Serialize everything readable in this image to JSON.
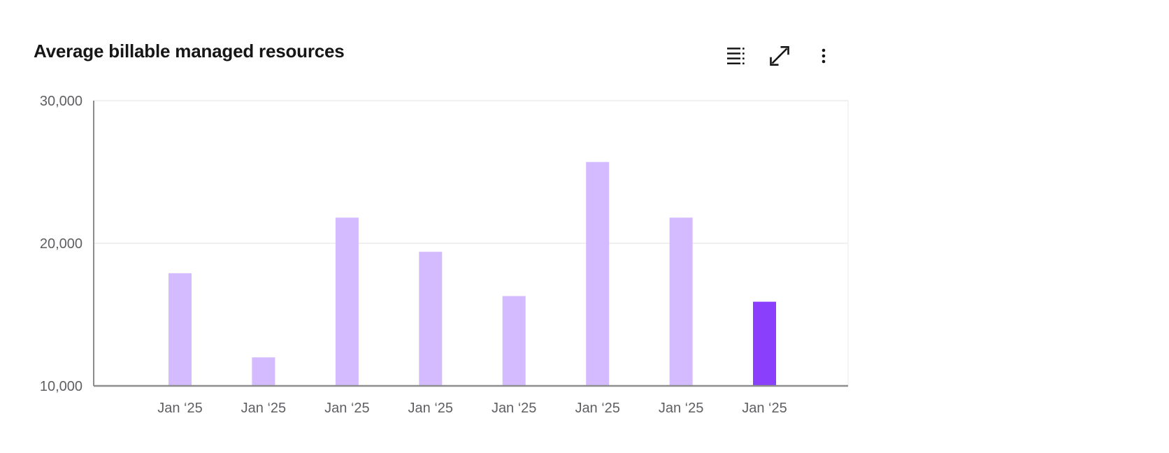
{
  "header": {
    "title": "Average billable managed resources",
    "toolbar": [
      {
        "name": "show-data-table",
        "icon": "data-table-icon"
      },
      {
        "name": "expand",
        "icon": "maximize-icon"
      },
      {
        "name": "more-options",
        "icon": "overflow-menu-icon"
      }
    ]
  },
  "chart_data": {
    "type": "bar",
    "title": "Average billable managed resources",
    "categories": [
      "Jan ‘25",
      "Jan ‘25",
      "Jan ‘25",
      "Jan ‘25",
      "Jan ‘25",
      "Jan ‘25",
      "Jan ‘25",
      "Jan ‘25"
    ],
    "values": [
      17900,
      12000,
      21800,
      19400,
      16300,
      25700,
      21800,
      15900
    ],
    "highlighted_index": 7,
    "xlabel": "",
    "ylabel": "",
    "ylim": [
      10000,
      30000
    ],
    "ytick_values": [
      10000,
      20000,
      30000
    ],
    "ytick_labels": [
      "10,000",
      "20,000",
      "30,000"
    ],
    "grid": "horizontal",
    "legend": "none",
    "colors": {
      "bar": "#d4bbff",
      "bar_highlight": "#8a3ffc",
      "axis_text": "#5f5f63",
      "grid_line": "#ececec",
      "plot_border": "#f0f0f0",
      "axis_line": "#8d8d8d",
      "icon": "#161616",
      "title_text": "#161616"
    }
  }
}
